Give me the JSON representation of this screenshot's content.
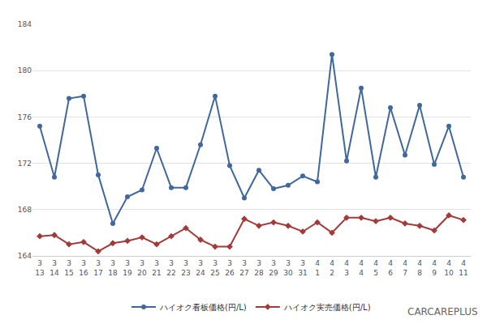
{
  "chart_data": {
    "type": "line",
    "categories": [
      "3\n13",
      "3\n14",
      "3\n15",
      "3\n16",
      "3\n17",
      "3\n18",
      "3\n19",
      "3\n20",
      "3\n21",
      "3\n22",
      "3\n23",
      "3\n24",
      "3\n25",
      "3\n26",
      "3\n27",
      "3\n28",
      "3\n29",
      "3\n30",
      "3\n31",
      "4\n1",
      "4\n2",
      "4\n3",
      "4\n4",
      "4\n5",
      "4\n6",
      "4\n7",
      "4\n8",
      "4\n9",
      "4\n10",
      "4\n11"
    ],
    "series": [
      {
        "name": "ハイオク看板価格(円/L)",
        "color": "#41689b",
        "marker": "circle",
        "values": [
          175.2,
          170.8,
          177.6,
          177.8,
          171.0,
          166.8,
          169.1,
          169.7,
          173.3,
          169.9,
          169.9,
          173.6,
          177.8,
          171.8,
          169.0,
          171.4,
          169.8,
          170.1,
          170.9,
          170.4,
          181.4,
          172.2,
          178.5,
          170.8,
          176.8,
          172.7,
          177.0,
          171.9,
          175.2,
          170.8
        ]
      },
      {
        "name": "ハイオク実売価格(円/L)",
        "color": "#a33a3a",
        "marker": "diamond",
        "values": [
          165.7,
          165.8,
          165.0,
          165.2,
          164.4,
          165.1,
          165.3,
          165.6,
          165.0,
          165.7,
          166.4,
          165.4,
          164.8,
          164.8,
          167.2,
          166.6,
          166.9,
          166.6,
          166.1,
          166.9,
          166.0,
          167.3,
          167.3,
          167.0,
          167.3,
          166.8,
          166.6,
          166.2,
          167.5,
          167.1
        ]
      }
    ],
    "ylim": [
      164,
      184
    ],
    "yticks": [
      164,
      168,
      172,
      176,
      180,
      184
    ],
    "grid": true,
    "legend": "bottom",
    "annotations": [
      "CARCAREPLUS"
    ]
  }
}
